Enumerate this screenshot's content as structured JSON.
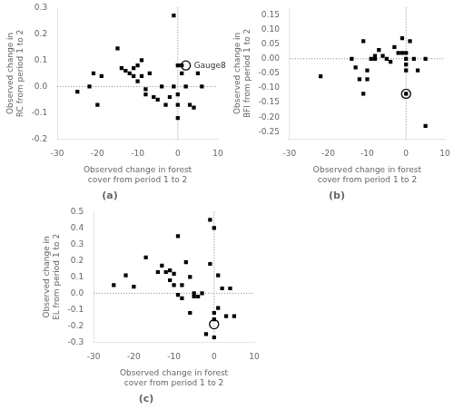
{
  "chart_data": [
    {
      "type": "scatter",
      "title": "(a)",
      "x_label": "Observed change in forest cover from period 1 to 2",
      "y_label": "Observed change in RC from period 1 to 2",
      "series": [
        {
          "color": "black",
          "marker": "square",
          "x": [
            -25,
            -22,
            -21,
            -20,
            -19,
            -15,
            -14,
            -13,
            -12,
            -11,
            -11,
            -10,
            -10,
            -9,
            -9,
            -8,
            -8,
            -7,
            -6,
            -5,
            -4,
            -3,
            -2,
            -1,
            -1,
            0,
            0,
            0,
            0,
            1,
            1,
            2,
            3,
            4,
            5,
            6
          ],
          "values": [
            -0.02,
            0.0,
            0.05,
            -0.07,
            0.04,
            0.145,
            0.07,
            0.06,
            0.05,
            0.07,
            0.04,
            0.08,
            0.02,
            0.1,
            0.04,
            -0.03,
            -0.01,
            0.05,
            -0.04,
            -0.05,
            0.0,
            -0.07,
            -0.04,
            0.27,
            0.0,
            0.08,
            -0.07,
            -0.12,
            -0.03,
            0.08,
            0.05,
            0.0,
            -0.07,
            -0.08,
            0.05,
            0.0
          ]
        },
        {
          "color": "black",
          "marker": "open_circle",
          "x": [
            2
          ],
          "values": [
            0.08
          ]
        }
      ],
      "annotations": [
        {
          "text": "Gauge8",
          "x": 2,
          "y": 0.08
        }
      ],
      "xlim": [
        -30,
        10
      ],
      "xticks": [
        -30,
        -20,
        -10,
        0,
        10
      ],
      "ylim": [
        -0.2,
        0.3
      ],
      "yticks": [
        -0.2,
        -0.1,
        {
          "value": 0,
          "label": "0.0"
        },
        0.1,
        0.2,
        0.3
      ],
      "grid": false
    },
    {
      "type": "scatter",
      "title": "(b)",
      "x_label": "Observed change in forest cover from period 1 to 2",
      "y_label": "Observed change in BFI from period 1 to 2",
      "series": [
        {
          "color": "black",
          "marker": "square",
          "x": [
            -22,
            -14,
            -13,
            -12,
            -11,
            -11,
            -10,
            -10,
            -9,
            -8,
            -8,
            -7,
            -6,
            -5,
            -4,
            -3,
            -2,
            -1,
            -1,
            0,
            0,
            0,
            0,
            0,
            1,
            2,
            3,
            5,
            5
          ],
          "values": [
            -0.06,
            0.0,
            -0.03,
            -0.07,
            -0.12,
            0.06,
            -0.07,
            -0.04,
            0.0,
            0.01,
            0.0,
            0.03,
            0.01,
            0.0,
            -0.01,
            0.04,
            0.02,
            0.07,
            0.02,
            0.02,
            0.0,
            -0.02,
            -0.04,
            -0.12,
            0.06,
            0.0,
            -0.04,
            -0.23,
            0.0
          ]
        },
        {
          "color": "black",
          "marker": "open_circle",
          "x": [
            0
          ],
          "values": [
            -0.12
          ]
        }
      ],
      "xlim": [
        -30,
        10
      ],
      "xticks": [
        -30,
        -20,
        -10,
        0,
        10
      ],
      "ylim": [
        -0.275,
        0.175
      ],
      "yticks": [
        -0.25,
        {
          "value": -0.2,
          "label": "-0.20"
        },
        -0.15,
        {
          "value": -0.1,
          "label": "-0.10"
        },
        -0.05,
        {
          "value": 0,
          "label": "0.00"
        },
        0.05,
        {
          "value": 0.1,
          "label": "0.10"
        },
        0.15
      ],
      "grid": false
    },
    {
      "type": "scatter",
      "title": "(c)",
      "x_label": "Observed change in forest cover from period 1 to 2",
      "y_label": "Observed change in EL from period 1 to 2",
      "series": [
        {
          "color": "black",
          "marker": "square",
          "x": [
            -25,
            -22,
            -20,
            -17,
            -14,
            -13,
            -12,
            -11,
            -11,
            -10,
            -10,
            -9,
            -9,
            -8,
            -8,
            -7,
            -6,
            -6,
            -5,
            -5,
            -4,
            -3,
            -2,
            -1,
            -1,
            0,
            0,
            0,
            0,
            1,
            1,
            2,
            3,
            4,
            5
          ],
          "values": [
            0.05,
            0.11,
            0.04,
            0.22,
            0.13,
            0.17,
            0.13,
            0.14,
            0.08,
            0.05,
            0.12,
            0.35,
            -0.01,
            -0.03,
            0.05,
            0.19,
            -0.12,
            0.1,
            0.0,
            -0.02,
            -0.02,
            0.0,
            -0.25,
            0.18,
            0.45,
            0.4,
            -0.27,
            -0.16,
            -0.12,
            0.11,
            -0.09,
            0.03,
            -0.14,
            0.03,
            -0.14
          ]
        },
        {
          "color": "black",
          "marker": "open_circle",
          "x": [
            0
          ],
          "values": [
            -0.19
          ]
        }
      ],
      "xlim": [
        -30,
        10
      ],
      "xticks": [
        -30,
        -20,
        -10,
        0,
        10
      ],
      "ylim": [
        -0.3,
        0.5
      ],
      "yticks": [
        -0.3,
        -0.2,
        -0.1,
        {
          "value": 0,
          "label": "0.0"
        },
        0.1,
        0.2,
        0.3,
        0.4,
        0.5
      ],
      "grid": false
    }
  ]
}
